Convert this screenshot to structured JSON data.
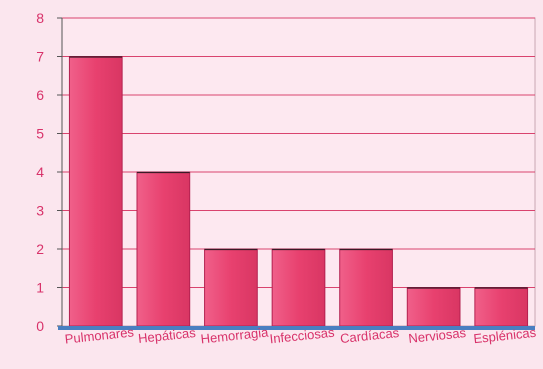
{
  "chart_data": {
    "type": "bar",
    "categories": [
      "Pulmonares",
      "Hepáticas",
      "Hemorragia",
      "Infecciosas",
      "Cardíacas",
      "Nerviosas",
      "Esplénicas"
    ],
    "values": [
      7,
      4,
      2,
      2,
      2,
      1,
      1
    ],
    "title": "",
    "xlabel": "",
    "ylabel": "",
    "ylim": [
      0,
      8
    ],
    "yticks": [
      0,
      1,
      2,
      3,
      4,
      5,
      6,
      7,
      8
    ],
    "grid": true,
    "legend": "none",
    "colors": {
      "bar": "#e8416f",
      "bar_edge": "#b32150",
      "plot_bg": "#fde8f0",
      "page_bg": "#fbe6ee",
      "grid": "#d9436e",
      "text": "#d8326a",
      "floor": "#4a7fc1"
    }
  }
}
